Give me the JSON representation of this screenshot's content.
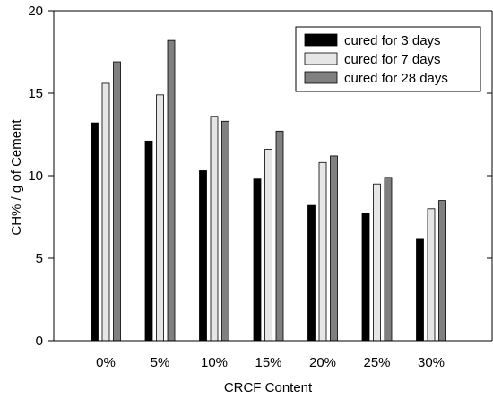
{
  "chart_data": {
    "type": "bar",
    "title": "",
    "xlabel": "CRCF Content",
    "ylabel": "CH% / g of Cement",
    "categories": [
      "0%",
      "5%",
      "10%",
      "15%",
      "20%",
      "25%",
      "30%"
    ],
    "ylim": [
      0,
      20
    ],
    "yticks": [
      0,
      5,
      10,
      15,
      20
    ],
    "grid": false,
    "legend_position": "top-right",
    "series": [
      {
        "name": "cured for 3 days",
        "color": "#000000",
        "values": [
          13.2,
          12.1,
          10.3,
          9.8,
          8.2,
          7.7,
          6.2
        ]
      },
      {
        "name": "cured for 7 days",
        "color": "#e6e6e6",
        "values": [
          15.6,
          14.9,
          13.6,
          11.6,
          10.8,
          9.5,
          8.0
        ]
      },
      {
        "name": "cured for 28 days",
        "color": "#808080",
        "values": [
          16.9,
          18.2,
          13.3,
          12.7,
          11.2,
          9.9,
          8.5
        ]
      }
    ]
  }
}
